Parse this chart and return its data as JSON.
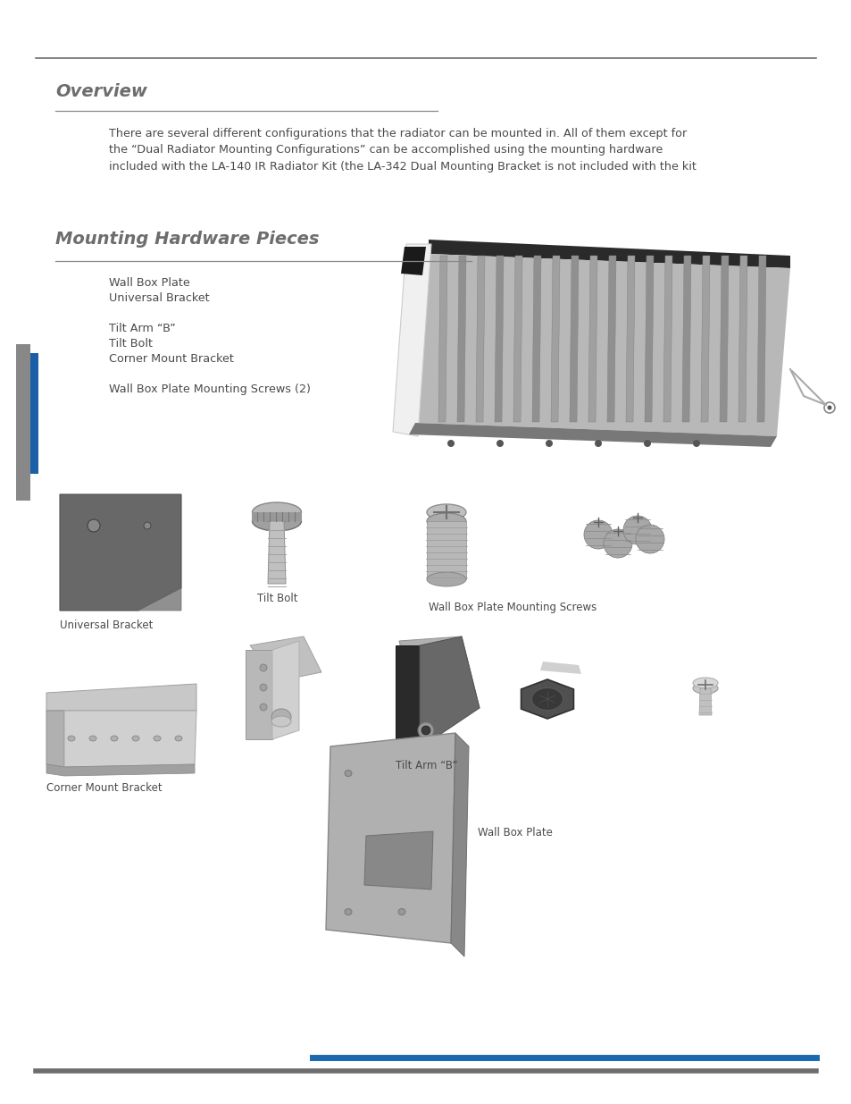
{
  "bg_color": "#ffffff",
  "top_line_color": "#6d6d6d",
  "section1_title": "Overview",
  "section1_body": "There are several different configurations that the radiator can be mounted in. All of them except for\nthe “Dual Radiator Mounting Configurations” can be accomplished using the mounting hardware\nincluded with the LA-140 IR Radiator Kit (the LA-342 Dual Mounting Bracket is not included with the kit",
  "section2_title": "Mounting Hardware Pieces",
  "section2_line_color": "#6d6d6d",
  "section2_items": [
    "Wall Box Plate",
    "Universal Bracket",
    "",
    "Tilt Arm “B”",
    "Tilt Bolt",
    "Corner Mount Bracket",
    "",
    "Wall Box Plate Mounting Screws (2)"
  ],
  "label_universal_bracket": "Universal Bracket",
  "label_tilt_bolt": "Tilt Bolt",
  "label_wall_box_mounting_screws": "Wall Box Plate Mounting Screws",
  "label_corner_mount_bracket": "Corner Mount Bracket",
  "label_tilt_arm_b": "Tilt Arm “B”",
  "label_wall_box_plate": "Wall Box Plate",
  "left_bar_gray_color": "#888888",
  "left_bar_blue_color": "#1a5fa8",
  "footer_blue_color": "#1a6aad",
  "footer_gray_color": "#6d6d6d",
  "title_color": "#6d6d6d",
  "body_color": "#4a4a4a",
  "text_color": "#4a4a4a"
}
